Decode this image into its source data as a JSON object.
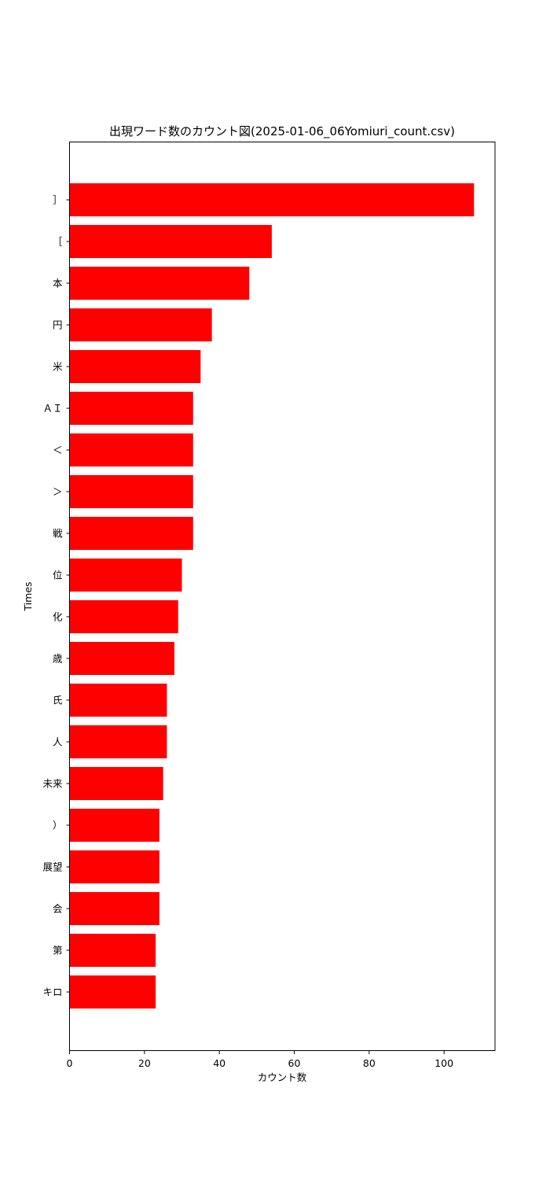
{
  "chart_data": {
    "type": "bar",
    "orientation": "horizontal",
    "title": "出現ワード数のカウント図(2025-01-06_06Yomiuri_count.csv)",
    "xlabel": "カウント数",
    "ylabel": "Times",
    "xlim": [
      0,
      113.6
    ],
    "xticks": [
      0,
      20,
      40,
      60,
      80,
      100
    ],
    "grid": false,
    "bar_color": "#ff0000",
    "categories": [
      "］",
      "［",
      "本",
      "円",
      "米",
      "ＡＩ",
      "＜",
      "＞",
      "戦",
      "位",
      "化",
      "歳",
      "氏",
      "人",
      "未来",
      "）",
      "展望",
      "会",
      "第",
      "キロ"
    ],
    "values": [
      108,
      54,
      48,
      38,
      35,
      33,
      33,
      33,
      33,
      30,
      29,
      28,
      26,
      26,
      25,
      24,
      24,
      24,
      23,
      23
    ]
  }
}
